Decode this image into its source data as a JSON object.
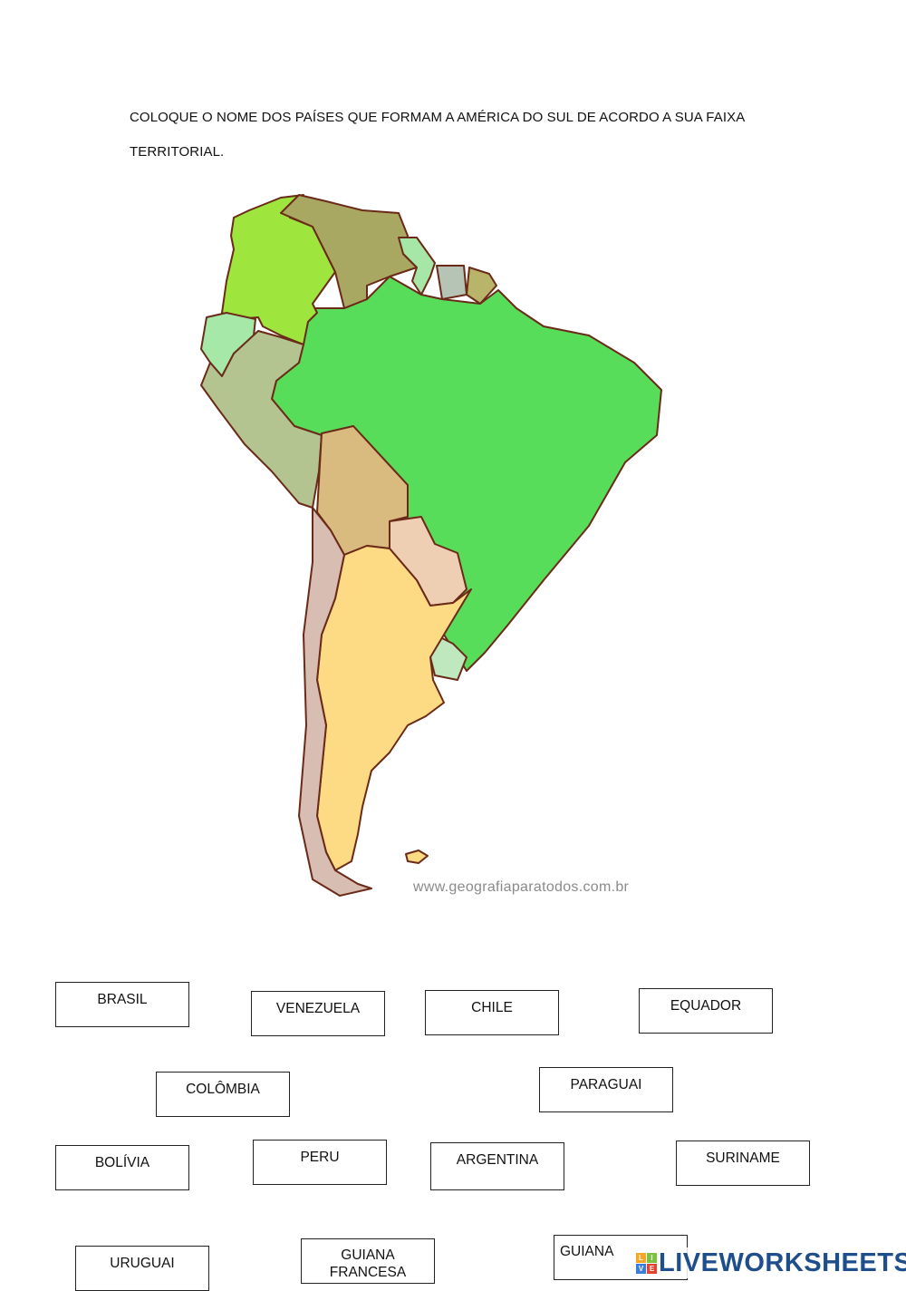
{
  "instructions": {
    "line1": "COLOQUE O NOME DOS PAÍSES QUE FORMAM A AMÉRICA DO SUL DE ACORDO A SUA FAIXA",
    "line2": "TERRITORIAL."
  },
  "map": {
    "credit": "www.geografiaparatodos.com.br",
    "colors": {
      "brasil": "#58dd5a",
      "colombia": "#9ee53e",
      "venezuela": "#a8a862",
      "guiana": "#a6e6a6",
      "suriname": "#b5c4b5",
      "guiana_francesa": "#b8b46a",
      "equador": "#a6e8a8",
      "peru": "#b3c491",
      "bolivia": "#d9bb7f",
      "paraguai": "#efcfb3",
      "uruguai": "#bfe8bf",
      "argentina": "#fddb85",
      "chile": "#d8bdb3",
      "border": "#6b2a18"
    }
  },
  "labels": [
    "BRASIL",
    "VENEZUELA",
    "CHILE",
    "EQUADOR",
    "COLÔMBIA",
    "PARAGUAI",
    "BOLÍVIA",
    "PERU",
    "ARGENTINA",
    "SURINAME",
    "URUGUAI",
    "GUIANA FRANCESA",
    "GUIANA"
  ],
  "logo": {
    "text": "LIVEWORKSHEETS",
    "mark_letters": [
      "L",
      "I",
      "V",
      "E"
    ],
    "mark_colors": [
      "#f5a623",
      "#7cc242",
      "#3b7dd8",
      "#e8412c"
    ]
  }
}
